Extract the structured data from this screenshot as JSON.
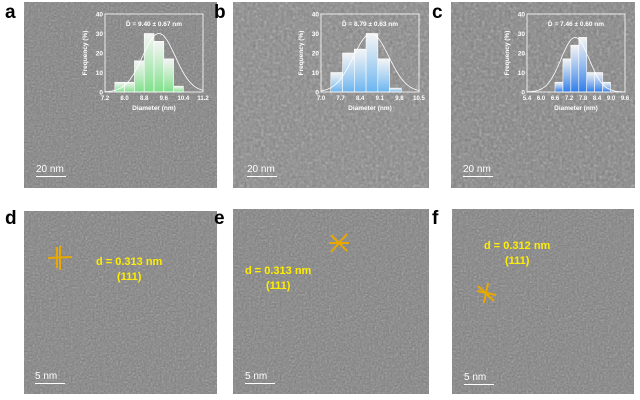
{
  "panels": [
    {
      "id": "a",
      "scale_bar": "20 nm"
    },
    {
      "id": "b",
      "scale_bar": "20 nm"
    },
    {
      "id": "c",
      "scale_bar": "20 nm"
    },
    {
      "id": "d",
      "scale_bar": "5 nm",
      "d_spacing": "d = 0.313 nm",
      "plane": "(111)"
    },
    {
      "id": "e",
      "scale_bar": "5 nm",
      "d_spacing": "d = 0.313 nm",
      "plane": "(111)"
    },
    {
      "id": "f",
      "scale_bar": "5 nm",
      "d_spacing": "d = 0.312 nm",
      "plane": "(111)"
    }
  ],
  "chart_data": [
    {
      "type": "bar",
      "panel": "a",
      "title": "D̄ = 9.40 ± 0.67 nm",
      "xlabel": "Diameter (nm)",
      "ylabel": "Frequency (%)",
      "xticks": [
        "7.2",
        "8.0",
        "8.8",
        "9.6",
        "10.4",
        "11.2"
      ],
      "xlim": [
        7.2,
        11.2
      ],
      "ylim": [
        0,
        40
      ],
      "yticks": [
        "0",
        "10",
        "20",
        "30",
        "40"
      ],
      "bin_start": 7.6,
      "bin_width": 0.4,
      "values": [
        5,
        5,
        16,
        30,
        26,
        17,
        3
      ],
      "fit": {
        "mean": 9.4,
        "sd": 0.67
      },
      "color": "#7fe08a"
    },
    {
      "type": "bar",
      "panel": "b",
      "title": "D̄ = 8.79 ± 0.63 nm",
      "xlabel": "Diameter (nm)",
      "ylabel": "Frequency (%)",
      "xticks": [
        "7.0",
        "7.7",
        "8.4",
        "9.1",
        "9.8",
        "10.5"
      ],
      "xlim": [
        7.0,
        10.5
      ],
      "ylim": [
        0,
        40
      ],
      "yticks": [
        "0",
        "10",
        "20",
        "30",
        "40"
      ],
      "bin_start": 7.35,
      "bin_width": 0.42,
      "values": [
        10,
        20,
        22,
        30,
        17,
        2
      ],
      "fit": {
        "mean": 8.79,
        "sd": 0.63
      },
      "color": "#6ab4f0"
    },
    {
      "type": "bar",
      "panel": "c",
      "title": "D̄ = 7.46 ± 0.60 nm",
      "xlabel": "Diameter (nm)",
      "ylabel": "Frequency (%)",
      "xticks": [
        "5.4",
        "6.0",
        "6.6",
        "7.2",
        "7.8",
        "8.4",
        "9.0",
        "9.6"
      ],
      "xlim": [
        5.4,
        9.6
      ],
      "ylim": [
        0,
        40
      ],
      "yticks": [
        "0",
        "10",
        "20",
        "30",
        "40"
      ],
      "bin_start": 6.6,
      "bin_width": 0.34,
      "values": [
        5,
        17,
        24,
        28,
        10,
        10,
        5
      ],
      "fit": {
        "mean": 7.46,
        "sd": 0.6
      },
      "color": "#2f7de8"
    }
  ]
}
